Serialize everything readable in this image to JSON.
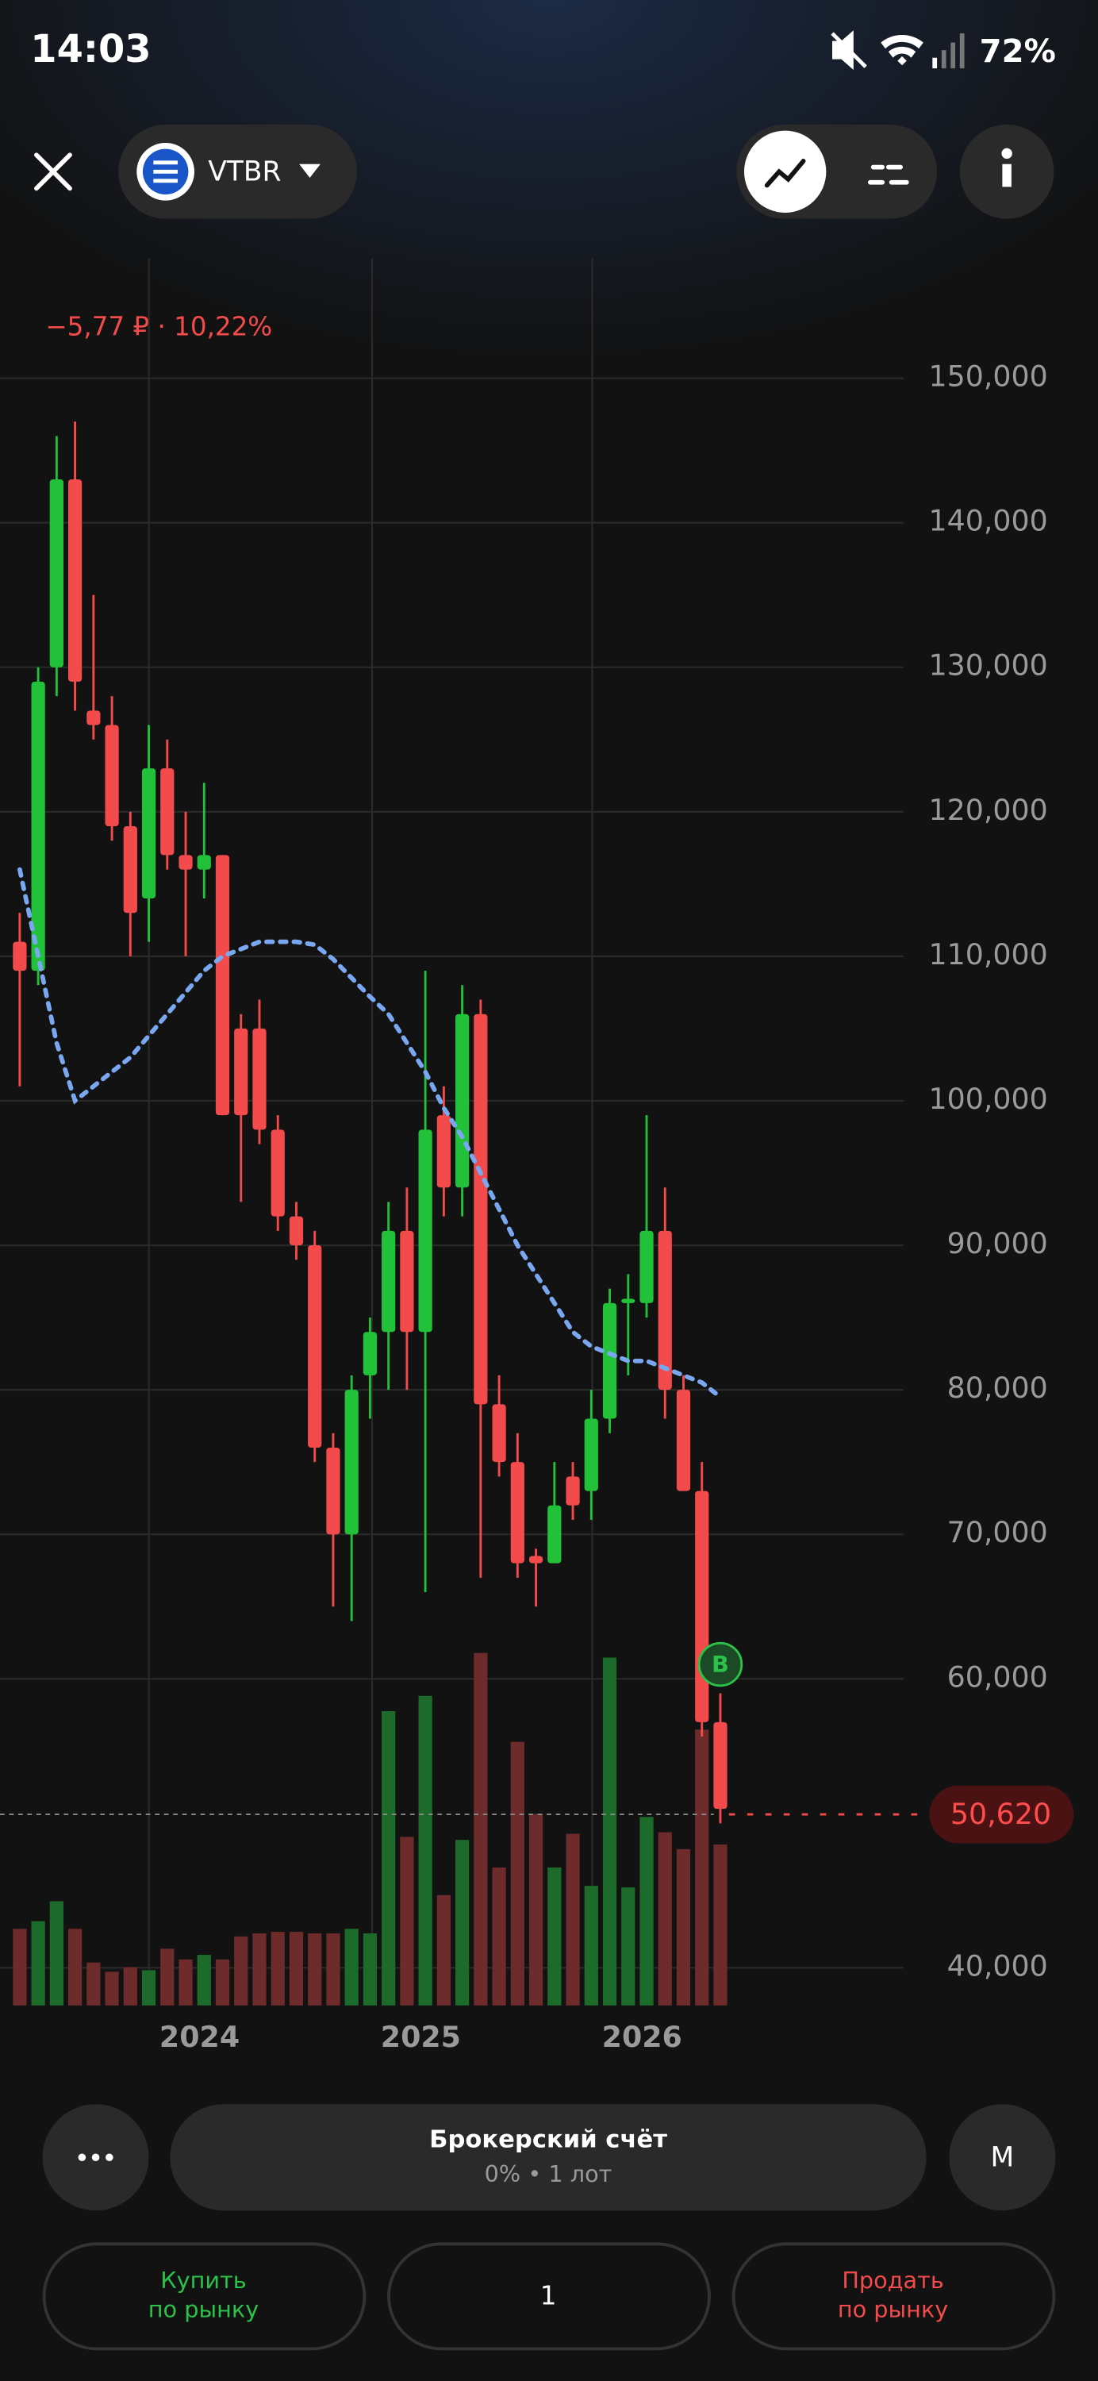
{
  "ui": {
    "time": "14:03",
    "battery": "72%",
    "ticker": "VTBR",
    "account_title": "Брокерский счёт",
    "account_subtitle": "0% • 1 лот",
    "mode": "M",
    "buy": [
      "Купить",
      "по рынку"
    ],
    "quantity": "1",
    "sell": [
      "Продать",
      "по рынку"
    ]
  },
  "chart_data": {
    "type": "candlestick",
    "change_label": "−5,77 ₽ · 10,22%",
    "categories": [
      null,
      null,
      null,
      null,
      null,
      null,
      null,
      null,
      null,
      null,
      "2024",
      null,
      null,
      null,
      null,
      null,
      null,
      null,
      null,
      null,
      null,
      null,
      "2025",
      null,
      null,
      null,
      null,
      null,
      null,
      null,
      null,
      null,
      null,
      null,
      "2026",
      null,
      null,
      null,
      null
    ],
    "open": [
      111000,
      109000,
      130000,
      143000,
      127000,
      126000,
      119000,
      114000,
      123000,
      117000,
      116000,
      117000,
      105000,
      105000,
      98000,
      92000,
      90000,
      76000,
      70000,
      81000,
      84000,
      91000,
      84000,
      99000,
      94000,
      106000,
      79000,
      75000,
      68500,
      68000,
      74000,
      73000,
      78000,
      86000,
      86000,
      91000,
      80000,
      73000,
      57000
    ],
    "high": [
      113000,
      130000,
      146000,
      147000,
      135000,
      128000,
      120000,
      126000,
      125000,
      120000,
      122000,
      117000,
      106000,
      107000,
      99000,
      93000,
      91000,
      77000,
      81000,
      85000,
      93000,
      94000,
      109000,
      101000,
      108000,
      107000,
      81000,
      77000,
      69000,
      75000,
      75000,
      80000,
      87000,
      88000,
      99000,
      94000,
      81000,
      75000,
      59000
    ],
    "low": [
      101000,
      108000,
      128000,
      127000,
      125000,
      118000,
      110000,
      111000,
      116000,
      110000,
      114000,
      99000,
      93000,
      97000,
      91000,
      89000,
      75000,
      65000,
      64000,
      78000,
      80000,
      80000,
      66000,
      92000,
      92000,
      67000,
      74000,
      67000,
      65000,
      68000,
      71000,
      71000,
      77000,
      81000,
      85000,
      78000,
      73000,
      56000,
      50000
    ],
    "close": [
      109000,
      129000,
      143000,
      129000,
      126000,
      119000,
      113000,
      123000,
      117000,
      116000,
      117000,
      99000,
      99000,
      98000,
      92000,
      90000,
      76000,
      70000,
      80000,
      84000,
      91000,
      84000,
      98000,
      94000,
      106000,
      79000,
      75000,
      68000,
      68000,
      72000,
      72000,
      78000,
      86000,
      86300,
      91000,
      80000,
      73000,
      57000,
      51000
    ],
    "volume": [
      50,
      55,
      68,
      50,
      28,
      22,
      25,
      23,
      37,
      30,
      33,
      30,
      45,
      47,
      48,
      48,
      47,
      47,
      50,
      47,
      192,
      110,
      202,
      72,
      108,
      230,
      90,
      172,
      125,
      90,
      112,
      78,
      227,
      77,
      123,
      113,
      102,
      180,
      105
    ],
    "up_color": "#22c13a",
    "down_color": "#f34b4b",
    "up_volume_color": "#1d6b2a",
    "down_volume_color": "#6e2b2b",
    "moving_average": {
      "color": "#7aa8f0",
      "values": [
        116000,
        110000,
        104000,
        100000,
        101000,
        102000,
        103000,
        104500,
        106000,
        107500,
        109000,
        110000,
        110500,
        111000,
        111000,
        111000,
        110800,
        109800,
        108500,
        107200,
        106000,
        104000,
        102000,
        99500,
        97500,
        95000,
        92500,
        90000,
        88000,
        86000,
        84000,
        83000,
        82500,
        82000,
        82000,
        81500,
        81000,
        80500,
        79500
      ]
    },
    "ylim": [
      37400,
      158300
    ],
    "yticks": [
      {
        "value": 40000,
        "label": "40,000"
      },
      {
        "value": 60000,
        "label": "60,000"
      },
      {
        "value": 70000,
        "label": "70,000"
      },
      {
        "value": 80000,
        "label": "80,000"
      },
      {
        "value": 90000,
        "label": "90,000"
      },
      {
        "value": 100000,
        "label": "100,000"
      },
      {
        "value": 110000,
        "label": "110,000"
      },
      {
        "value": 120000,
        "label": "120,000"
      },
      {
        "value": 130000,
        "label": "130,000"
      },
      {
        "value": 140000,
        "label": "140,000"
      },
      {
        "value": 150000,
        "label": "150,000"
      }
    ],
    "grid": true,
    "last_price": {
      "value": 50620,
      "label": "50,620"
    },
    "markers": [
      {
        "label": "B",
        "index": 38,
        "value": 61000
      }
    ]
  }
}
